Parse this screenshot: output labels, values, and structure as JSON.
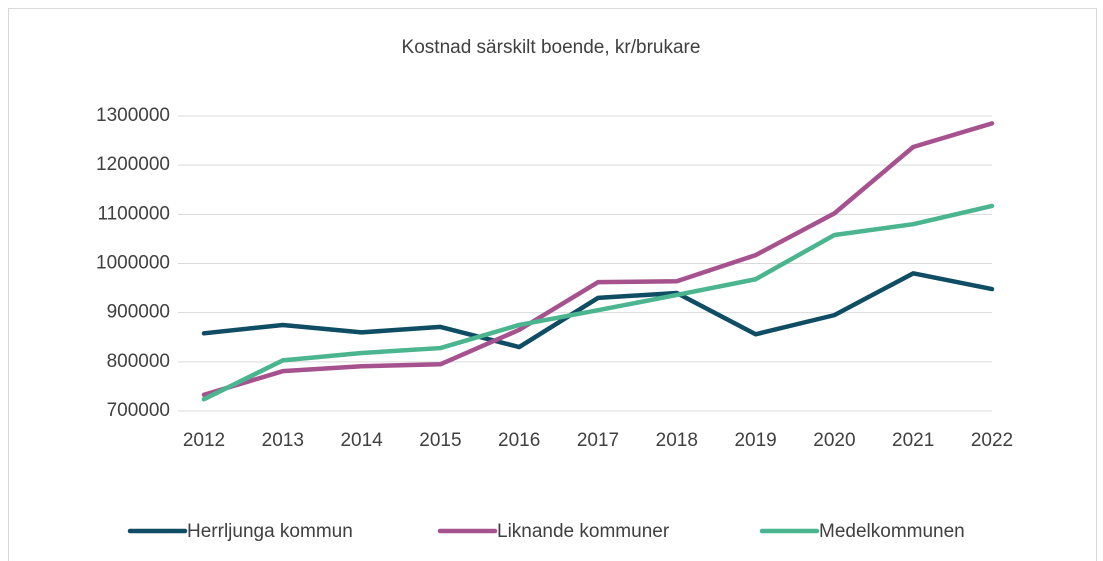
{
  "chart_data": {
    "type": "line",
    "title": "Kostnad särskilt boende, kr/brukare",
    "categories": [
      "2012",
      "2013",
      "2014",
      "2015",
      "2016",
      "2017",
      "2018",
      "2019",
      "2020",
      "2021",
      "2022"
    ],
    "series": [
      {
        "name": "Herrljunga kommun",
        "color": "#0e4d64",
        "values": [
          858000,
          875000,
          860000,
          871000,
          830000,
          930000,
          940000,
          856000,
          895000,
          980000,
          948000
        ]
      },
      {
        "name": "Liknande kommuner",
        "color": "#a5528e",
        "values": [
          733000,
          781000,
          791000,
          795000,
          865000,
          962000,
          964000,
          1017000,
          1102000,
          1237000,
          1285000
        ]
      },
      {
        "name": "Medelkommunen",
        "color": "#4bb58f",
        "values": [
          724000,
          803000,
          818000,
          828000,
          875000,
          905000,
          936000,
          968000,
          1058000,
          1080000,
          1117000
        ]
      }
    ],
    "ylim": [
      700000,
      1300000
    ],
    "yticks": [
      700000,
      800000,
      900000,
      1000000,
      1100000,
      1200000,
      1300000
    ],
    "grid": true,
    "legend": "bottom"
  }
}
